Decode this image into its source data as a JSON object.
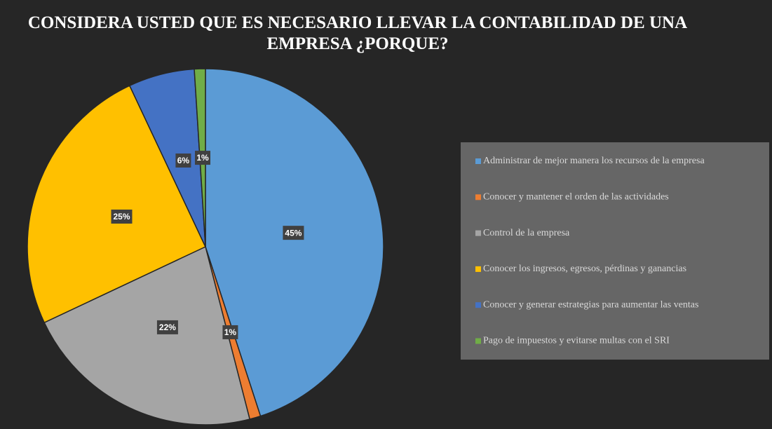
{
  "chart_data": {
    "type": "pie",
    "title": "CONSIDERA USTED QUE ES NECESARIO LLEVAR LA CONTABILIDAD DE UNA EMPRESA ¿PORQUE?",
    "categories": [
      "Administrar de mejor manera los recursos de la empresa",
      "Conocer y mantener el orden de las actividades",
      "Control de la empresa",
      "Conocer los ingresos, egresos, pérdinas y ganancias",
      "Conocer y generar estrategias para aumentar las ventas",
      "Pago de impuestos y evitarse multas con el SRI"
    ],
    "values": [
      45,
      1,
      22,
      25,
      6,
      1
    ],
    "value_labels": [
      "45%",
      "1%",
      "22%",
      "25%",
      "6%",
      "1%"
    ],
    "colors": [
      "#5b9bd5",
      "#ed7d31",
      "#a5a5a5",
      "#ffc000",
      "#4472c4",
      "#70ad47"
    ],
    "legend": "right"
  }
}
